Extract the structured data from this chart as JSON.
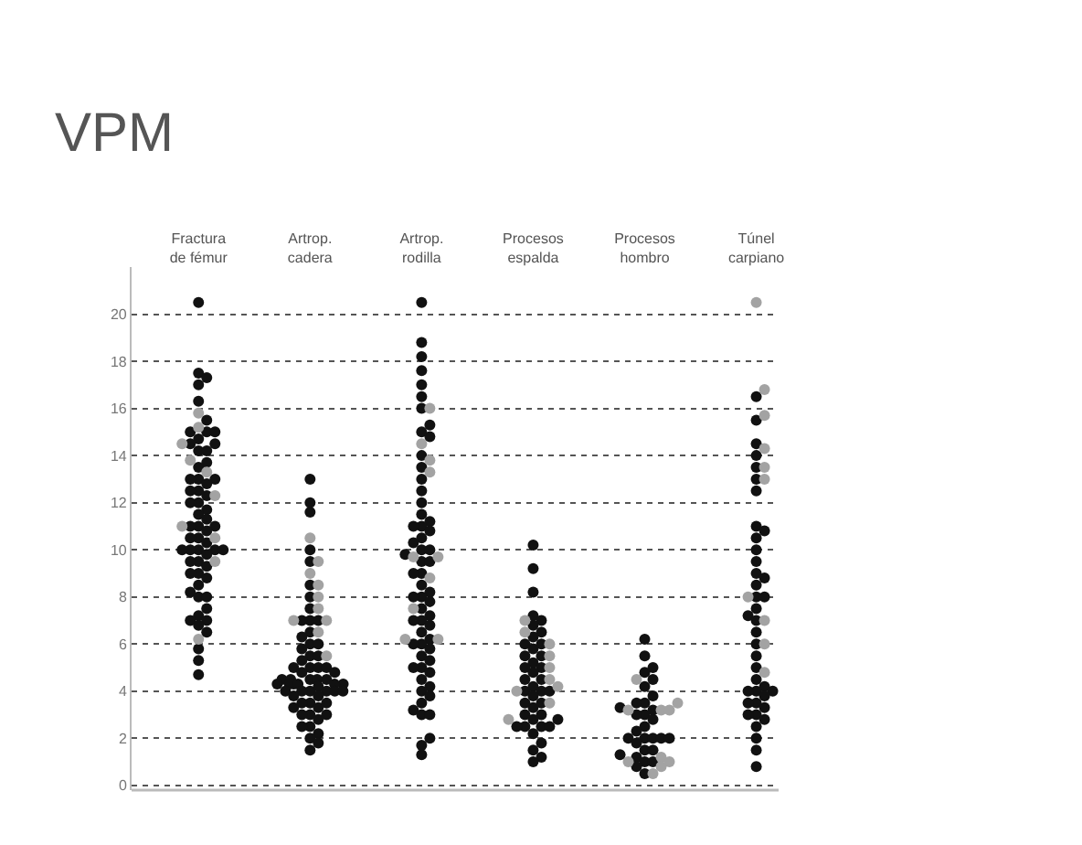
{
  "chart_data": {
    "type": "scatter",
    "title": "VPM",
    "categories": [
      "Fractura\nde fémur",
      "Artrop.\ncadera",
      "Artrop.\nrodilla",
      "Procesos\nespalda",
      "Procesos\nhombro",
      "Túnel\ncarpiano"
    ],
    "ylim": [
      -0.2,
      22
    ],
    "yticks": [
      0,
      2,
      4,
      6,
      8,
      10,
      12,
      14,
      16,
      18,
      20
    ],
    "grid": "y",
    "marker": "circle",
    "series": [
      {
        "color": "#111111",
        "x": [
          "Fractura\nde fémur",
          "Fractura\nde fémur",
          "Fractura\nde fémur",
          "Fractura\nde fémur",
          "Fractura\nde fémur",
          "Fractura\nde fémur",
          "Fractura\nde fémur",
          "Fractura\nde fémur",
          "Fractura\nde fémur",
          "Fractura\nde fémur",
          "Fractura\nde fémur",
          "Fractura\nde fémur",
          "Fractura\nde fémur",
          "Fractura\nde fémur",
          "Fractura\nde fémur",
          "Fractura\nde fémur",
          "Fractura\nde fémur",
          "Fractura\nde fémur",
          "Fractura\nde fémur",
          "Fractura\nde fémur",
          "Fractura\nde fémur",
          "Fractura\nde fémur",
          "Fractura\nde fémur",
          "Fractura\nde fémur",
          "Fractura\nde fémur",
          "Fractura\nde fémur",
          "Fractura\nde fémur",
          "Fractura\nde fémur",
          "Fractura\nde fémur",
          "Fractura\nde fémur",
          "Fractura\nde fémur",
          "Fractura\nde fémur",
          "Fractura\nde fémur",
          "Fractura\nde fémur",
          "Fractura\nde fémur",
          "Fractura\nde fémur",
          "Fractura\nde fémur",
          "Fractura\nde fémur",
          "Fractura\nde fémur",
          "Fractura\nde fémur",
          "Fractura\nde fémur",
          "Fractura\nde fémur",
          "Fractura\nde fémur",
          "Fractura\nde fémur",
          "Fractura\nde fémur",
          "Fractura\nde fémur",
          "Fractura\nde fémur",
          "Fractura\nde fémur",
          "Fractura\nde fémur",
          "Fractura\nde fémur",
          "Fractura\nde fémur",
          "Fractura\nde fémur",
          "Fractura\nde fémur",
          "Fractura\nde fémur",
          "Fractura\nde fémur",
          "Fractura\nde fémur",
          "Fractura\nde fémur",
          "Fractura\nde fémur",
          "Fractura\nde fémur",
          "Fractura\nde fémur",
          "Artrop.\ncadera",
          "Artrop.\ncadera",
          "Artrop.\ncadera",
          "Artrop.\ncadera",
          "Artrop.\ncadera",
          "Artrop.\ncadera",
          "Artrop.\ncadera",
          "Artrop.\ncadera",
          "Artrop.\ncadera",
          "Artrop.\ncadera",
          "Artrop.\ncadera",
          "Artrop.\ncadera",
          "Artrop.\ncadera",
          "Artrop.\ncadera",
          "Artrop.\ncadera",
          "Artrop.\ncadera",
          "Artrop.\ncadera",
          "Artrop.\ncadera",
          "Artrop.\ncadera",
          "Artrop.\ncadera",
          "Artrop.\ncadera",
          "Artrop.\ncadera",
          "Artrop.\ncadera",
          "Artrop.\ncadera",
          "Artrop.\ncadera",
          "Artrop.\ncadera",
          "Artrop.\ncadera",
          "Artrop.\ncadera",
          "Artrop.\ncadera",
          "Artrop.\ncadera",
          "Artrop.\ncadera",
          "Artrop.\ncadera",
          "Artrop.\ncadera",
          "Artrop.\ncadera",
          "Artrop.\ncadera",
          "Artrop.\ncadera",
          "Artrop.\ncadera",
          "Artrop.\ncadera",
          "Artrop.\ncadera",
          "Artrop.\ncadera",
          "Artrop.\ncadera",
          "Artrop.\ncadera",
          "Artrop.\ncadera",
          "Artrop.\ncadera",
          "Artrop.\ncadera",
          "Artrop.\ncadera",
          "Artrop.\ncadera",
          "Artrop.\ncadera",
          "Artrop.\ncadera",
          "Artrop.\ncadera",
          "Artrop.\ncadera",
          "Artrop.\ncadera",
          "Artrop.\ncadera",
          "Artrop.\ncadera",
          "Artrop.\ncadera",
          "Artrop.\ncadera",
          "Artrop.\ncadera",
          "Artrop.\ncadera",
          "Artrop.\ncadera",
          "Artrop.\ncadera",
          "Artrop.\nrodilla",
          "Artrop.\nrodilla",
          "Artrop.\nrodilla",
          "Artrop.\nrodilla",
          "Artrop.\nrodilla",
          "Artrop.\nrodilla",
          "Artrop.\nrodilla",
          "Artrop.\nrodilla",
          "Artrop.\nrodilla",
          "Artrop.\nrodilla",
          "Artrop.\nrodilla",
          "Artrop.\nrodilla",
          "Artrop.\nrodilla",
          "Artrop.\nrodilla",
          "Artrop.\nrodilla",
          "Artrop.\nrodilla",
          "Artrop.\nrodilla",
          "Artrop.\nrodilla",
          "Artrop.\nrodilla",
          "Artrop.\nrodilla",
          "Artrop.\nrodilla",
          "Artrop.\nrodilla",
          "Artrop.\nrodilla",
          "Artrop.\nrodilla",
          "Artrop.\nrodilla",
          "Artrop.\nrodilla",
          "Artrop.\nrodilla",
          "Artrop.\nrodilla",
          "Artrop.\nrodilla",
          "Artrop.\nrodilla",
          "Artrop.\nrodilla",
          "Artrop.\nrodilla",
          "Artrop.\nrodilla",
          "Artrop.\nrodilla",
          "Artrop.\nrodilla",
          "Artrop.\nrodilla",
          "Artrop.\nrodilla",
          "Artrop.\nrodilla",
          "Artrop.\nrodilla",
          "Artrop.\nrodilla",
          "Artrop.\nrodilla",
          "Artrop.\nrodilla",
          "Artrop.\nrodilla",
          "Artrop.\nrodilla",
          "Artrop.\nrodilla",
          "Artrop.\nrodilla",
          "Artrop.\nrodilla",
          "Artrop.\nrodilla",
          "Artrop.\nrodilla",
          "Artrop.\nrodilla",
          "Artrop.\nrodilla",
          "Artrop.\nrodilla",
          "Artrop.\nrodilla",
          "Artrop.\nrodilla",
          "Artrop.\nrodilla",
          "Artrop.\nrodilla",
          "Artrop.\nrodilla",
          "Artrop.\nrodilla",
          "Artrop.\nrodilla",
          "Artrop.\nrodilla",
          "Procesos\nespalda",
          "Procesos\nespalda",
          "Procesos\nespalda",
          "Procesos\nespalda",
          "Procesos\nespalda",
          "Procesos\nespalda",
          "Procesos\nespalda",
          "Procesos\nespalda",
          "Procesos\nespalda",
          "Procesos\nespalda",
          "Procesos\nespalda",
          "Procesos\nespalda",
          "Procesos\nespalda",
          "Procesos\nespalda",
          "Procesos\nespalda",
          "Procesos\nespalda",
          "Procesos\nespalda",
          "Procesos\nespalda",
          "Procesos\nespalda",
          "Procesos\nespalda",
          "Procesos\nespalda",
          "Procesos\nespalda",
          "Procesos\nespalda",
          "Procesos\nespalda",
          "Procesos\nespalda",
          "Procesos\nespalda",
          "Procesos\nespalda",
          "Procesos\nespalda",
          "Procesos\nespalda",
          "Procesos\nespalda",
          "Procesos\nespalda",
          "Procesos\nespalda",
          "Procesos\nespalda",
          "Procesos\nespalda",
          "Procesos\nespalda",
          "Procesos\nespalda",
          "Procesos\nespalda",
          "Procesos\nespalda",
          "Procesos\nespalda",
          "Procesos\nespalda",
          "Procesos\nhombro",
          "Procesos\nhombro",
          "Procesos\nhombro",
          "Procesos\nhombro",
          "Procesos\nhombro",
          "Procesos\nhombro",
          "Procesos\nhombro",
          "Procesos\nhombro",
          "Procesos\nhombro",
          "Procesos\nhombro",
          "Procesos\nhombro",
          "Procesos\nhombro",
          "Procesos\nhombro",
          "Procesos\nhombro",
          "Procesos\nhombro",
          "Procesos\nhombro",
          "Procesos\nhombro",
          "Procesos\nhombro",
          "Procesos\nhombro",
          "Procesos\nhombro",
          "Procesos\nhombro",
          "Procesos\nhombro",
          "Procesos\nhombro",
          "Procesos\nhombro",
          "Procesos\nhombro",
          "Procesos\nhombro",
          "Procesos\nhombro",
          "Procesos\nhombro",
          "Procesos\nhombro",
          "Procesos\nhombro",
          "Túnel\ncarpiano",
          "Túnel\ncarpiano",
          "Túnel\ncarpiano",
          "Túnel\ncarpiano",
          "Túnel\ncarpiano",
          "Túnel\ncarpiano",
          "Túnel\ncarpiano",
          "Túnel\ncarpiano",
          "Túnel\ncarpiano",
          "Túnel\ncarpiano",
          "Túnel\ncarpiano",
          "Túnel\ncarpiano",
          "Túnel\ncarpiano",
          "Túnel\ncarpiano",
          "Túnel\ncarpiano",
          "Túnel\ncarpiano",
          "Túnel\ncarpiano",
          "Túnel\ncarpiano",
          "Túnel\ncarpiano",
          "Túnel\ncarpiano",
          "Túnel\ncarpiano",
          "Túnel\ncarpiano",
          "Túnel\ncarpiano",
          "Túnel\ncarpiano",
          "Túnel\ncarpiano",
          "Túnel\ncarpiano",
          "Túnel\ncarpiano",
          "Túnel\ncarpiano",
          "Túnel\ncarpiano",
          "Túnel\ncarpiano",
          "Túnel\ncarpiano",
          "Túnel\ncarpiano",
          "Túnel\ncarpiano",
          "Túnel\ncarpiano",
          "Túnel\ncarpiano",
          "Túnel\ncarpiano",
          "Túnel\ncarpiano",
          "Túnel\ncarpiano",
          "Túnel\ncarpiano",
          "Túnel\ncarpiano"
        ],
        "values": [
          20.5,
          17.5,
          17.3,
          17,
          16.3,
          15.5,
          15,
          15,
          15,
          14.7,
          14.5,
          14.5,
          14.2,
          14.2,
          13.7,
          13.5,
          13,
          13,
          13,
          12.8,
          12.5,
          12.5,
          12.3,
          12,
          12,
          11.7,
          11.5,
          11.3,
          11,
          11,
          11,
          10.8,
          10.5,
          10.5,
          10.3,
          10,
          10,
          10,
          10,
          9.8,
          9.5,
          9.5,
          9.3,
          9,
          9,
          8.8,
          8.5,
          8.2,
          8,
          8,
          7.5,
          7.2,
          7,
          7,
          6.8,
          6.5,
          5.8,
          5.3,
          4.7,
          10,
          13,
          12,
          11.6,
          10,
          9.5,
          8.5,
          8,
          7.5,
          7,
          7,
          7,
          6.5,
          6.3,
          6,
          6,
          5.8,
          5.5,
          5.5,
          5.3,
          5,
          5,
          5,
          5,
          4.8,
          4.8,
          4.5,
          4.5,
          4.5,
          4.5,
          4.5,
          4.3,
          4.3,
          4.3,
          4.3,
          4.3,
          4.3,
          4.2,
          4,
          4,
          4,
          4,
          4,
          3.8,
          3.8,
          3.5,
          3.5,
          3.5,
          3.3,
          3.3,
          3,
          3,
          3,
          2.8,
          2.5,
          2.5,
          2.2,
          2,
          1.8,
          1.5,
          4,
          20.5,
          18.8,
          18.2,
          17.6,
          17,
          16.5,
          16,
          15.3,
          15,
          14.8,
          14,
          13.5,
          13,
          12.5,
          12,
          11.5,
          11.2,
          11,
          11,
          10.8,
          10.5,
          10.3,
          10,
          10,
          9.8,
          9.5,
          9.5,
          9,
          9,
          8.5,
          8.2,
          8,
          8,
          7.8,
          7.5,
          7.2,
          7,
          7,
          6.8,
          6.5,
          6.2,
          6,
          6,
          5.8,
          5.5,
          5.3,
          5,
          5,
          4.8,
          4.5,
          4.2,
          4,
          3.8,
          3.5,
          3.2,
          3,
          3,
          2,
          1.7,
          1.3,
          10.2,
          9.2,
          8.2,
          7.2,
          7,
          6.8,
          6.5,
          6.3,
          6,
          5.8,
          5.5,
          5.2,
          5,
          4.8,
          4.5,
          4.2,
          4,
          4,
          3.8,
          3.5,
          3.3,
          3,
          3,
          2.8,
          2.5,
          2.5,
          2.5,
          2.5,
          2.2,
          1.8,
          1.5,
          1.2,
          1,
          4.5,
          5.5,
          6,
          3.5,
          4,
          5,
          2.8,
          6.2,
          5.5,
          5,
          4.8,
          4.5,
          4.2,
          3.8,
          3.5,
          3.5,
          3.3,
          3.2,
          3,
          3,
          2.8,
          2.5,
          2.3,
          2,
          2,
          2,
          2,
          2,
          1.8,
          1.5,
          1.5,
          1.3,
          1.2,
          1,
          1,
          0.8,
          0.5,
          16.5,
          15.5,
          14.5,
          14,
          13.5,
          13,
          12.5,
          11,
          10.8,
          10.5,
          10,
          9.5,
          9,
          8.8,
          8.5,
          8,
          8,
          7.5,
          7.2,
          7,
          6.5,
          6,
          5.5,
          5,
          4.5,
          4.2,
          4,
          4,
          4,
          3.8,
          3.5,
          3.5,
          3.3,
          3,
          3,
          2.8,
          2.5,
          2,
          1.5,
          0.8
        ]
      },
      {
        "color": "#a3a3a3",
        "x": [
          "Fractura\nde fémur",
          "Fractura\nde fémur",
          "Fractura\nde fémur",
          "Fractura\nde fémur",
          "Fractura\nde fémur",
          "Fractura\nde fémur",
          "Fractura\nde fémur",
          "Fractura\nde fémur",
          "Fractura\nde fémur",
          "Fractura\nde fémur",
          "Artrop.\ncadera",
          "Artrop.\ncadera",
          "Artrop.\ncadera",
          "Artrop.\ncadera",
          "Artrop.\ncadera",
          "Artrop.\ncadera",
          "Artrop.\ncadera",
          "Artrop.\ncadera",
          "Artrop.\ncadera",
          "Artrop.\ncadera",
          "Artrop.\nrodilla",
          "Artrop.\nrodilla",
          "Artrop.\nrodilla",
          "Artrop.\nrodilla",
          "Artrop.\nrodilla",
          "Artrop.\nrodilla",
          "Artrop.\nrodilla",
          "Artrop.\nrodilla",
          "Artrop.\nrodilla",
          "Artrop.\nrodilla",
          "Procesos\nespalda",
          "Procesos\nespalda",
          "Procesos\nespalda",
          "Procesos\nespalda",
          "Procesos\nespalda",
          "Procesos\nespalda",
          "Procesos\nespalda",
          "Procesos\nespalda",
          "Procesos\nespalda",
          "Procesos\nespalda",
          "Procesos\nhombro",
          "Procesos\nhombro",
          "Procesos\nhombro",
          "Procesos\nhombro",
          "Procesos\nhombro",
          "Procesos\nhombro",
          "Procesos\nhombro",
          "Procesos\nhombro",
          "Procesos\nhombro",
          "Procesos\nhombro",
          "Túnel\ncarpiano",
          "Túnel\ncarpiano",
          "Túnel\ncarpiano",
          "Túnel\ncarpiano",
          "Túnel\ncarpiano",
          "Túnel\ncarpiano",
          "Túnel\ncarpiano",
          "Túnel\ncarpiano",
          "Túnel\ncarpiano",
          "Túnel\ncarpiano"
        ],
        "values": [
          15.8,
          15.2,
          14.5,
          13.8,
          13.3,
          12.3,
          11,
          10.5,
          9.5,
          6.2,
          10.5,
          9.5,
          9,
          8.5,
          8,
          7.5,
          7,
          7,
          6.5,
          5.5,
          16,
          14.5,
          13.8,
          13.3,
          9.7,
          9.7,
          8.8,
          7.5,
          6.2,
          6.2,
          7,
          6.5,
          6,
          5.5,
          5,
          4.5,
          4.2,
          4,
          3.5,
          2.8,
          4.5,
          3.5,
          3.2,
          3.2,
          3.2,
          1.2,
          1,
          1,
          0.8,
          0.5,
          20.5,
          16.8,
          15.7,
          14.3,
          13.5,
          13,
          8,
          7,
          6,
          4.8
        ]
      }
    ]
  }
}
